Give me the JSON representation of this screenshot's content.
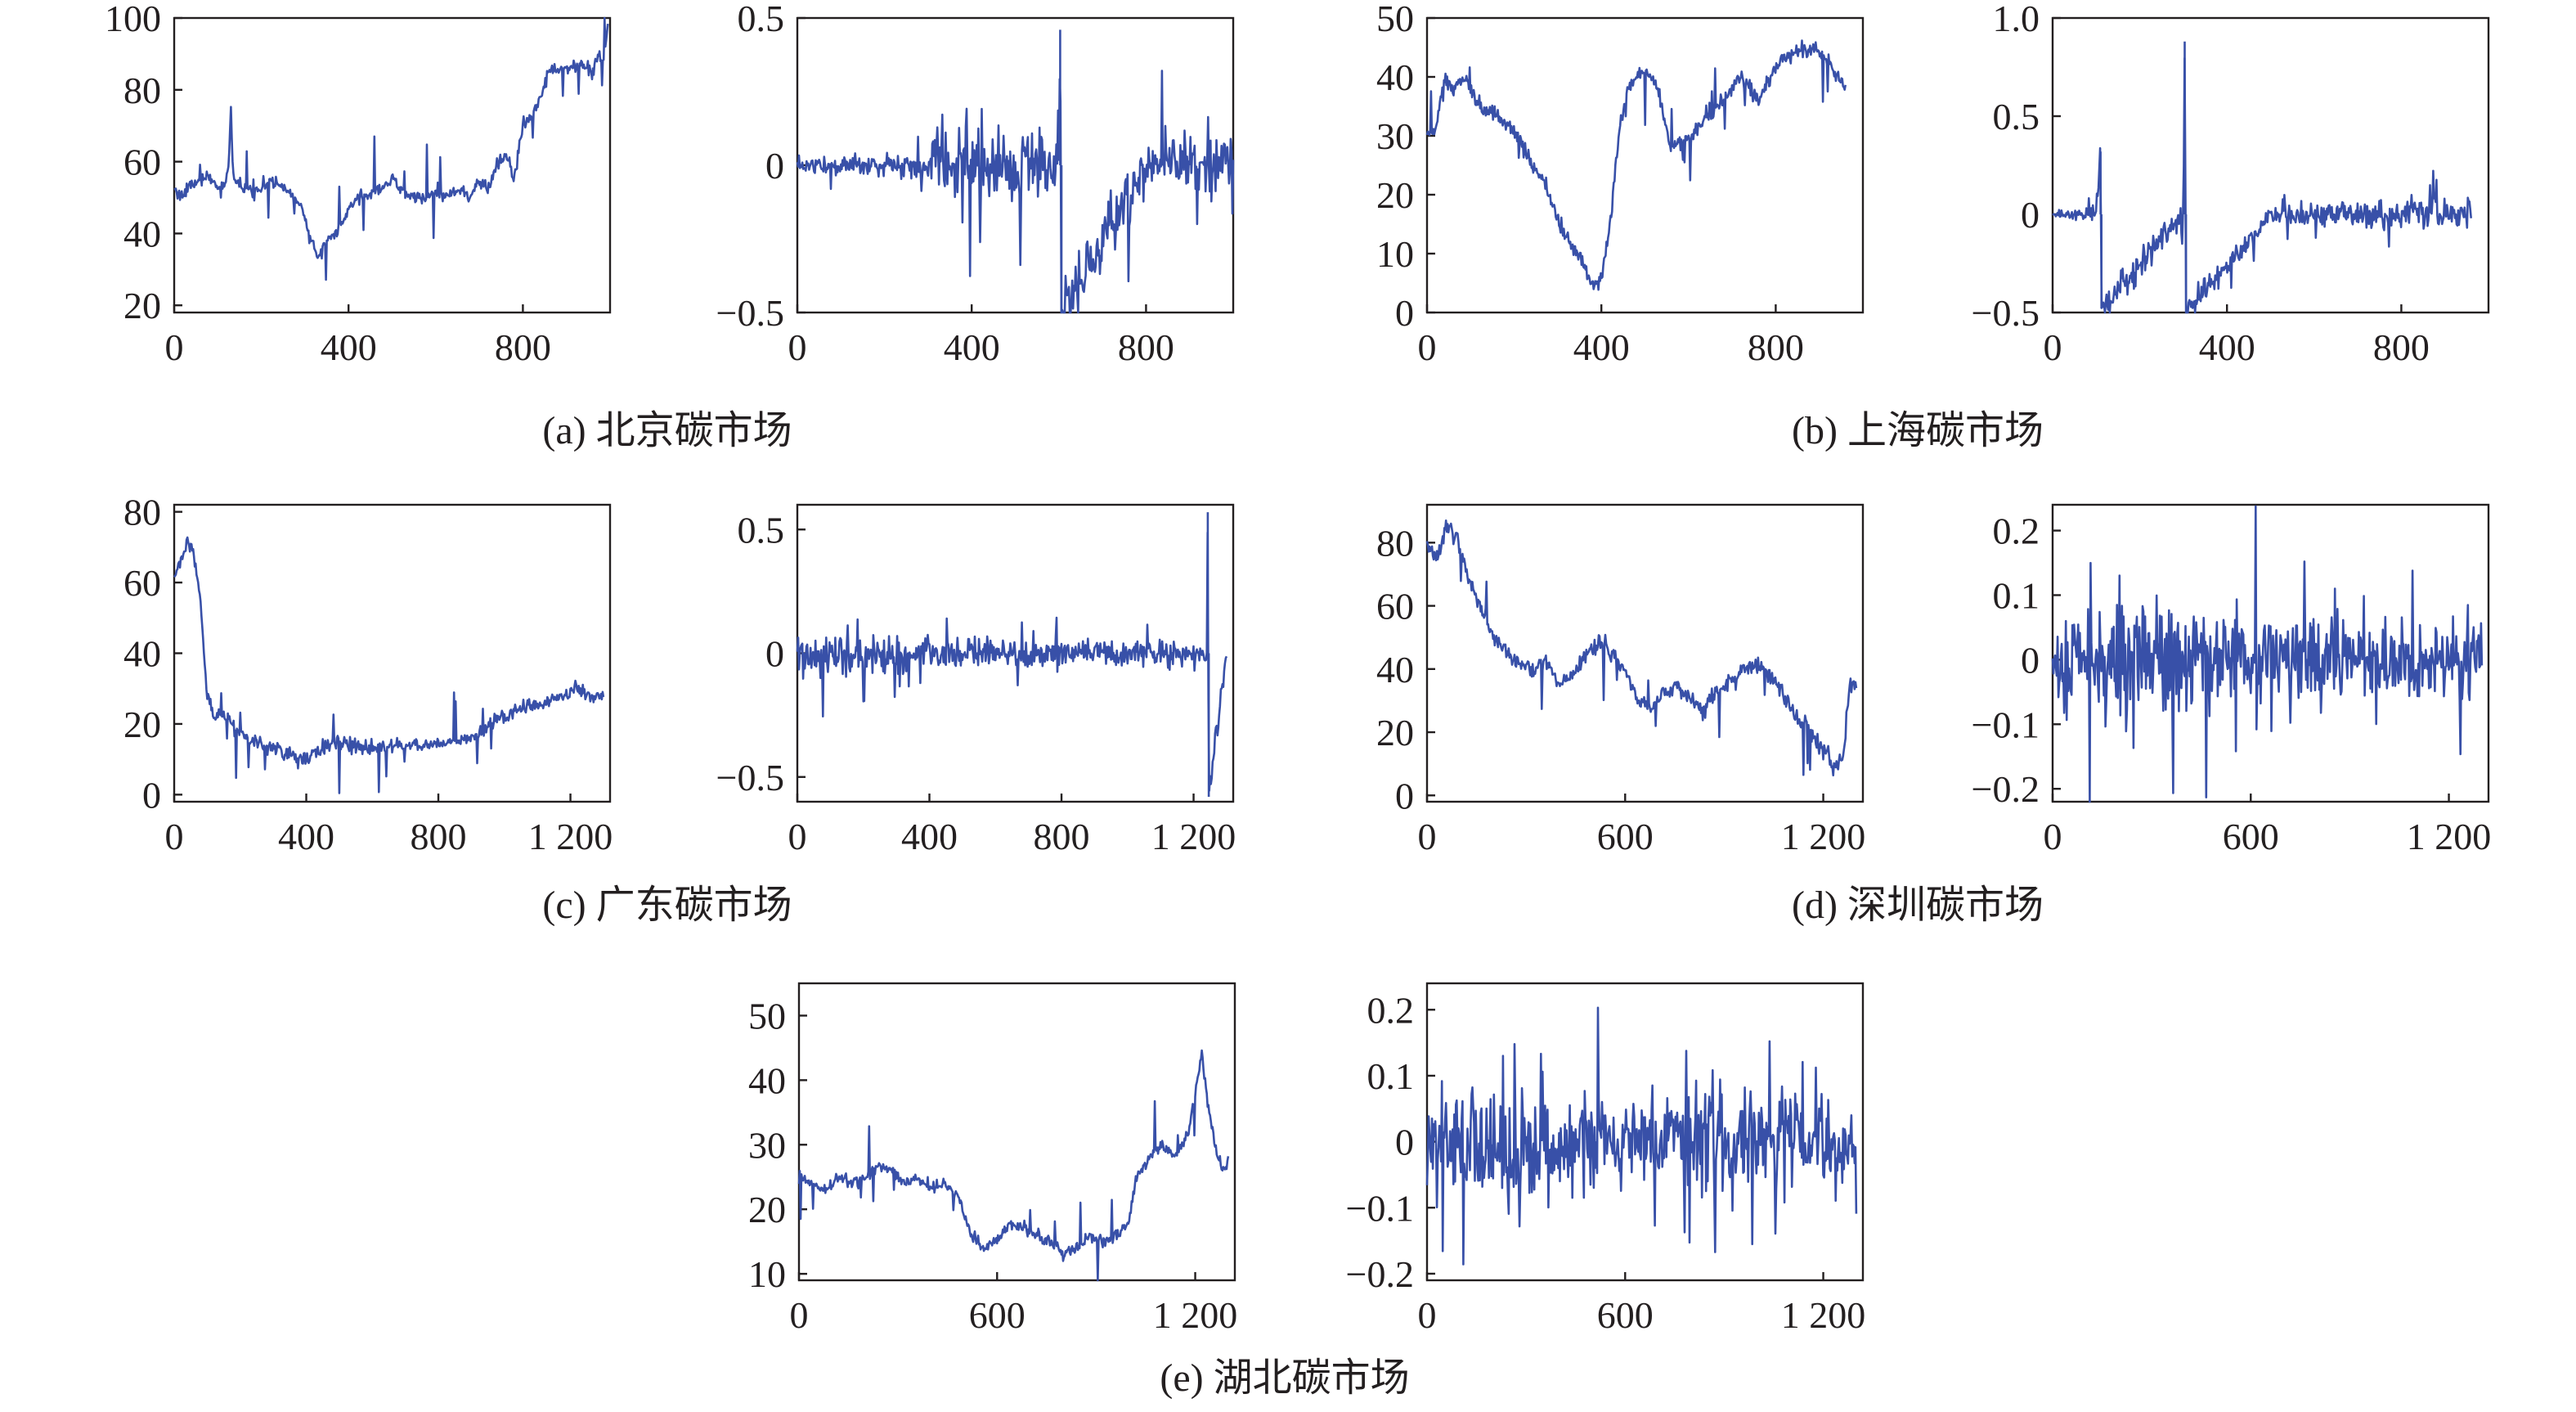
{
  "figure": {
    "captions": [
      "(a) 北京碳市场",
      "(b) 上海碳市场",
      "(c) 广东碳市场",
      "(d) 深圳碳市场",
      "(e) 湖北碳市场"
    ]
  },
  "colors": {
    "series": "#3850a8",
    "axis": "#231f20"
  },
  "chart_data": [
    {
      "id": "beijing-price",
      "panel": "a",
      "type": "line",
      "title": "",
      "xlabel": "",
      "ylabel": "",
      "xlim": [
        0,
        1000
      ],
      "ylim": [
        18,
        100
      ],
      "xticks": [
        0,
        400,
        800
      ],
      "xticklabels": [
        "0",
        "400",
        "800"
      ],
      "yticks": [
        20,
        40,
        60,
        80,
        100
      ],
      "yticklabels": [
        "20",
        "40",
        "60",
        "80",
        "100"
      ],
      "series": [
        {
          "x": [
            0,
            20,
            40,
            60,
            80,
            100,
            115,
            125,
            130,
            135,
            150,
            180,
            220,
            260,
            290,
            310,
            330,
            350,
            380,
            420,
            460,
            500,
            540,
            580,
            600,
            620,
            650,
            680,
            700,
            720,
            740,
            760,
            780,
            800,
            820,
            840,
            860,
            880,
            900,
            920,
            940,
            960,
            975,
            985,
            995
          ],
          "y": [
            52,
            51,
            53,
            55,
            56,
            53,
            52,
            60,
            76,
            55,
            53,
            52,
            55,
            52,
            48,
            40,
            33,
            38,
            42,
            50,
            52,
            55,
            50,
            50,
            52,
            50,
            52,
            50,
            55,
            52,
            60,
            62,
            55,
            70,
            72,
            78,
            86,
            85,
            86,
            86,
            87,
            85,
            90,
            88,
            97
          ],
          "noise": 0.9
        }
      ]
    },
    {
      "id": "beijing-return",
      "panel": "a",
      "type": "line",
      "title": "",
      "xlabel": "",
      "ylabel": "",
      "xlim": [
        0,
        1000
      ],
      "ylim": [
        -0.5,
        0.5
      ],
      "xticks": [
        0,
        400,
        800
      ],
      "xticklabels": [
        "0",
        "400",
        "800"
      ],
      "yticks": [
        -0.5,
        0,
        0.5
      ],
      "yticklabels": [
        "−0.5",
        "0",
        "0.5"
      ],
      "series": [
        {
          "x": [
            0,
            300,
            320,
            500,
            600,
            603,
            606,
            800,
            1000
          ],
          "y": [
            0,
            0,
            0,
            0,
            0,
            0.46,
            -0.5,
            0,
            0
          ],
          "vol": [
            0.02,
            0.03,
            0.09,
            0.09,
            0.08,
            0.08,
            0.08,
            0.07,
            0.07
          ],
          "noise": 1
        }
      ]
    },
    {
      "id": "shanghai-price",
      "panel": "b",
      "type": "line",
      "title": "",
      "xlabel": "",
      "ylabel": "",
      "xlim": [
        0,
        1000
      ],
      "ylim": [
        0,
        50
      ],
      "xticks": [
        0,
        400,
        800
      ],
      "xticklabels": [
        "0",
        "400",
        "800"
      ],
      "yticks": [
        0,
        10,
        20,
        30,
        40,
        50
      ],
      "yticklabels": [
        "0",
        "10",
        "20",
        "30",
        "40",
        "50"
      ],
      "series": [
        {
          "x": [
            0,
            20,
            40,
            60,
            80,
            100,
            120,
            150,
            180,
            210,
            240,
            270,
            300,
            330,
            360,
            380,
            400,
            420,
            440,
            460,
            480,
            500,
            530,
            560,
            600,
            640,
            680,
            720,
            760,
            800,
            840,
            880,
            920,
            940,
            960
          ],
          "y": [
            30,
            31,
            40,
            38,
            40,
            38,
            35,
            34,
            32,
            30,
            25,
            22,
            15,
            12,
            8,
            5,
            6,
            15,
            30,
            38,
            40,
            41,
            38,
            28,
            30,
            33,
            36,
            40,
            36,
            42,
            44,
            45,
            43,
            40,
            38
          ],
          "noise": 1.1
        }
      ]
    },
    {
      "id": "shanghai-return",
      "panel": "b",
      "type": "line",
      "title": "",
      "xlabel": "",
      "ylabel": "",
      "xlim": [
        0,
        1000
      ],
      "ylim": [
        -0.5,
        1.0
      ],
      "xticks": [
        0,
        400,
        800
      ],
      "xticklabels": [
        "0",
        "400",
        "800"
      ],
      "yticks": [
        -0.5,
        0,
        0.5,
        1.0
      ],
      "yticklabels": [
        "−0.5",
        "0",
        "0.5",
        "1.0"
      ],
      "series": [
        {
          "x": [
            0,
            100,
            110,
            112,
            300,
            303,
            306,
            500,
            700,
            960
          ],
          "y": [
            0,
            0,
            0.32,
            -0.48,
            0,
            0.88,
            -0.5,
            0,
            0,
            0
          ],
          "vol": [
            0.01,
            0.03,
            0.05,
            0.05,
            0.06,
            0.06,
            0.05,
            0.04,
            0.05,
            0.06
          ],
          "noise": 1
        }
      ]
    },
    {
      "id": "guangdong-price",
      "panel": "c",
      "type": "line",
      "title": "",
      "xlabel": "",
      "ylabel": "",
      "xlim": [
        0,
        1320
      ],
      "ylim": [
        -2,
        82
      ],
      "xticks": [
        0,
        400,
        800,
        1200
      ],
      "xticklabels": [
        "0",
        "400",
        "800",
        "1 200"
      ],
      "yticks": [
        0,
        20,
        40,
        60,
        80
      ],
      "yticklabels": [
        "0",
        "20",
        "40",
        "60",
        "80"
      ],
      "series": [
        {
          "x": [
            0,
            20,
            40,
            60,
            80,
            100,
            120,
            150,
            200,
            260,
            320,
            380,
            420,
            480,
            540,
            600,
            680,
            760,
            840,
            900,
            960,
            1040,
            1120,
            1180,
            1220,
            1260,
            1300
          ],
          "y": [
            62,
            66,
            72,
            68,
            55,
            28,
            22,
            22,
            17,
            14,
            13,
            10,
            11,
            15,
            14,
            13,
            14,
            14,
            15,
            16,
            20,
            24,
            26,
            28,
            30,
            28,
            28
          ],
          "noise": 1.0
        }
      ]
    },
    {
      "id": "guangdong-return",
      "panel": "c",
      "type": "line",
      "title": "",
      "xlabel": "",
      "ylabel": "",
      "xlim": [
        0,
        1320
      ],
      "ylim": [
        -0.6,
        0.6
      ],
      "xticks": [
        0,
        400,
        800,
        1200
      ],
      "xticklabels": [
        "0",
        "400",
        "800",
        "1 200"
      ],
      "yticks": [
        -0.5,
        0,
        0.5
      ],
      "yticklabels": [
        "−0.5",
        "0",
        "0.5"
      ],
      "series": [
        {
          "x": [
            0,
            300,
            500,
            800,
            1240,
            1243,
            1246,
            1300
          ],
          "y": [
            0,
            0,
            0,
            0,
            0,
            0.57,
            -0.58,
            0
          ],
          "vol": [
            0.06,
            0.06,
            0.05,
            0.04,
            0.03,
            0.03,
            0.03,
            0.03
          ],
          "noise": 1
        }
      ]
    },
    {
      "id": "shenzhen-price",
      "panel": "d",
      "type": "line",
      "title": "",
      "xlabel": "",
      "ylabel": "",
      "xlim": [
        0,
        1320
      ],
      "ylim": [
        -2,
        92
      ],
      "xticks": [
        0,
        600,
        1200
      ],
      "xticklabels": [
        "0",
        "600",
        "1 200"
      ],
      "yticks": [
        0,
        20,
        40,
        60,
        80
      ],
      "yticklabels": [
        "0",
        "20",
        "40",
        "60",
        "80"
      ],
      "series": [
        {
          "x": [
            0,
            30,
            60,
            90,
            120,
            160,
            200,
            240,
            280,
            320,
            360,
            400,
            440,
            480,
            520,
            560,
            600,
            640,
            680,
            720,
            760,
            800,
            840,
            880,
            920,
            960,
            1000,
            1040,
            1080,
            1120,
            1160,
            1200,
            1230,
            1260,
            1280,
            1300
          ],
          "y": [
            80,
            75,
            86,
            82,
            70,
            60,
            50,
            45,
            42,
            40,
            43,
            35,
            38,
            44,
            48,
            45,
            40,
            30,
            28,
            32,
            35,
            30,
            28,
            33,
            36,
            40,
            42,
            38,
            32,
            24,
            20,
            15,
            8,
            12,
            35,
            34
          ],
          "noise": 1.2
        }
      ]
    },
    {
      "id": "shenzhen-return",
      "panel": "d",
      "type": "line",
      "title": "",
      "xlabel": "",
      "ylabel": "",
      "xlim": [
        0,
        1320
      ],
      "ylim": [
        -0.22,
        0.24
      ],
      "xticks": [
        0,
        600,
        1200
      ],
      "xticklabels": [
        "0",
        "600",
        "1 200"
      ],
      "yticks": [
        -0.2,
        -0.1,
        0,
        0.1,
        0.2
      ],
      "yticklabels": [
        "−0.2",
        "−0.1",
        "0",
        "0.1",
        "0.2"
      ],
      "series": [
        {
          "x": [
            0,
            200,
            260,
            400,
            800,
            1200,
            1300
          ],
          "y": [
            0,
            0,
            0,
            0,
            0,
            0,
            0
          ],
          "vol": [
            0.05,
            0.07,
            0.08,
            0.06,
            0.05,
            0.04,
            0.05
          ],
          "noise": 1
        }
      ]
    },
    {
      "id": "hubei-price",
      "panel": "e",
      "type": "line",
      "title": "",
      "xlabel": "",
      "ylabel": "",
      "xlim": [
        0,
        1320
      ],
      "ylim": [
        9,
        55
      ],
      "xticks": [
        0,
        600,
        1200
      ],
      "xticklabels": [
        "0",
        "600",
        "1 200"
      ],
      "yticks": [
        10,
        20,
        30,
        40,
        50
      ],
      "yticklabels": [
        "10",
        "20",
        "30",
        "40",
        "50"
      ],
      "series": [
        {
          "x": [
            0,
            40,
            80,
            120,
            160,
            200,
            240,
            280,
            320,
            360,
            400,
            440,
            480,
            520,
            560,
            600,
            640,
            680,
            720,
            760,
            800,
            840,
            880,
            920,
            960,
            1000,
            1020,
            1060,
            1100,
            1140,
            1180,
            1200,
            1220,
            1240,
            1260,
            1280,
            1300
          ],
          "y": [
            25,
            24,
            23,
            25,
            24,
            25,
            27,
            26,
            24,
            25,
            23,
            24,
            22,
            16,
            14,
            15,
            18,
            17,
            16,
            15,
            13,
            14,
            16,
            15,
            16,
            18,
            25,
            28,
            30,
            28,
            32,
            38,
            44,
            36,
            30,
            26,
            27
          ],
          "noise": 0.8
        }
      ]
    },
    {
      "id": "hubei-return",
      "panel": "e",
      "type": "line",
      "title": "",
      "xlabel": "",
      "ylabel": "",
      "xlim": [
        0,
        1320
      ],
      "ylim": [
        -0.21,
        0.24
      ],
      "xticks": [
        0,
        600,
        1200
      ],
      "xticklabels": [
        "0",
        "600",
        "1 200"
      ],
      "yticks": [
        -0.2,
        -0.1,
        0,
        0.1,
        0.2
      ],
      "yticklabels": [
        "−0.2",
        "−0.1",
        "0",
        "0.1",
        "0.2"
      ],
      "series": [
        {
          "x": [
            0,
            200,
            240,
            400,
            600,
            900,
            1000,
            1300
          ],
          "y": [
            0,
            0,
            0,
            0,
            0,
            0,
            0,
            0
          ],
          "vol": [
            0.05,
            0.06,
            0.07,
            0.05,
            0.05,
            0.05,
            0.06,
            0.05
          ],
          "noise": 1
        }
      ]
    }
  ]
}
